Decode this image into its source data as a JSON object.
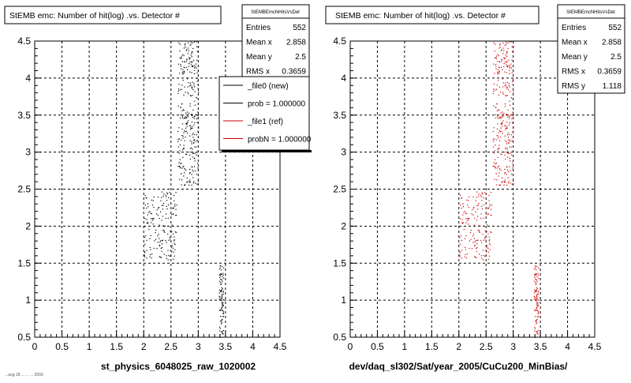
{
  "colors": {
    "new": "#000000",
    "ref": "#cc0000",
    "background": "#ffffff",
    "grid": "#000000"
  },
  "corner_note": "...ang 18 ... ... ... 2003",
  "chart_data": [
    {
      "type": "scatter",
      "title": "StEMB emc: Number of hit(log) .vs. Detector #",
      "xlabel": "st_physics_6048025_raw_1020002",
      "ylabel": "",
      "xlim": [
        0,
        4.5
      ],
      "ylim": [
        0.5,
        4.5
      ],
      "xticks": [
        0,
        0.5,
        1,
        1.5,
        2,
        2.5,
        3,
        3.5,
        4,
        4.5
      ],
      "yticks": [
        0.5,
        1,
        1.5,
        2,
        2.5,
        3,
        3.5,
        4,
        4.5
      ],
      "grid": true,
      "marker_color": "#000000",
      "stats": {
        "name": "StEMBEmcNHitsVsDet",
        "rows": [
          {
            "label": "Entries",
            "value": "552"
          },
          {
            "label": "Mean x",
            "value": "2.858"
          },
          {
            "label": "Mean y",
            "value": "2.5"
          },
          {
            "label": "RMS x",
            "value": "0.3659"
          }
        ]
      },
      "legend": {
        "position": "top-right",
        "entries": [
          {
            "label": "_file0 (new)",
            "color": "#000000"
          },
          {
            "label": "prob = 1.000000",
            "color": "#000000"
          },
          {
            "label": "_file1 (ref)",
            "color": "#cc0000"
          },
          {
            "label": "probN = 1.000000",
            "color": "#cc0000"
          }
        ]
      },
      "clusters": [
        {
          "x": [
            2.62,
            3.0
          ],
          "y": [
            2.55,
            4.5
          ],
          "n": 300
        },
        {
          "x": [
            2.0,
            2.6
          ],
          "y": [
            1.55,
            2.5
          ],
          "n": 160
        },
        {
          "x": [
            3.38,
            3.46
          ],
          "y": [
            0.5,
            1.5
          ],
          "n": 90
        }
      ]
    },
    {
      "type": "scatter",
      "title": "StEMB emc: Number of hit(log) .vs. Detector #",
      "xlabel": "dev/daq_sl302/Sat/year_2005/CuCu200_MinBias/",
      "ylabel": "",
      "xlim": [
        0,
        4.5
      ],
      "ylim": [
        0.5,
        4.5
      ],
      "xticks": [
        0,
        0.5,
        1,
        1.5,
        2,
        2.5,
        3,
        3.5,
        4,
        4.5
      ],
      "yticks": [
        0.5,
        1,
        1.5,
        2,
        2.5,
        3,
        3.5,
        4,
        4.5
      ],
      "grid": true,
      "marker_color": "#cc0000",
      "stats": {
        "name": "StEMBEmcNHitsVsDet",
        "rows": [
          {
            "label": "Entries",
            "value": "552"
          },
          {
            "label": "Mean x",
            "value": "2.858"
          },
          {
            "label": "Mean y",
            "value": "2.5"
          },
          {
            "label": "RMS x",
            "value": "0.3659"
          },
          {
            "label": "RMS y",
            "value": "1.118"
          }
        ]
      },
      "legend": null,
      "clusters": [
        {
          "x": [
            2.62,
            3.0
          ],
          "y": [
            2.55,
            4.5
          ],
          "n": 300
        },
        {
          "x": [
            2.0,
            2.6
          ],
          "y": [
            1.55,
            2.5
          ],
          "n": 160
        },
        {
          "x": [
            3.38,
            3.46
          ],
          "y": [
            0.5,
            1.5
          ],
          "n": 90
        }
      ]
    }
  ]
}
